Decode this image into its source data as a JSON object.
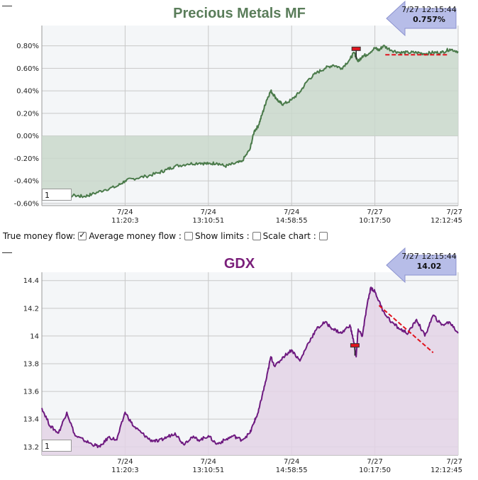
{
  "controls": {
    "true_money_flow_label": "True money flow:",
    "true_money_flow_checked": true,
    "average_money_flow_label": "Average money flow :",
    "average_money_flow_checked": false,
    "show_limits_label": "Show limits :",
    "show_limits_checked": false,
    "scale_chart_label": "Scale chart :",
    "scale_chart_checked": false
  },
  "chart_data": [
    {
      "type": "area",
      "title": "Precious Metals MF",
      "title_color": "#5a7d5a",
      "line_color": "#4a7a4a",
      "fill_color": "#c9d8cb",
      "ylim": [
        -0.62,
        0.98
      ],
      "y_ticks": [
        -0.6,
        -0.4,
        -0.2,
        0.0,
        0.2,
        0.4,
        0.6,
        0.8
      ],
      "y_tick_labels": [
        "-0.60%",
        "-0.40%",
        "-0.20%",
        "0.00%",
        "0.20%",
        "0.40%",
        "0.60%",
        "0.80%"
      ],
      "x_ticks": [
        {
          "x": 0.2,
          "date": "7/24",
          "time": "11:20:3"
        },
        {
          "x": 0.4,
          "date": "7/24",
          "time": "13:10:51"
        },
        {
          "x": 0.6,
          "date": "7/24",
          "time": "14:58:55"
        },
        {
          "x": 0.8,
          "date": "7/27",
          "time": "10:17:50"
        },
        {
          "x": 1.0,
          "date": "7/27",
          "time": "12:12:45"
        }
      ],
      "series": [
        {
          "x": [
            0,
            0.03,
            0.05,
            0.08,
            0.1,
            0.12,
            0.15,
            0.18,
            0.2,
            0.22,
            0.25,
            0.28,
            0.3,
            0.32,
            0.35,
            0.38,
            0.4,
            0.42,
            0.44,
            0.46,
            0.48,
            0.5,
            0.51,
            0.52,
            0.53,
            0.54,
            0.55,
            0.56,
            0.57,
            0.58,
            0.6,
            0.62,
            0.64,
            0.66,
            0.68,
            0.7,
            0.72,
            0.74,
            0.75,
            0.76,
            0.77,
            0.78,
            0.8,
            0.81,
            0.82,
            0.84,
            0.86,
            0.88,
            0.9,
            0.92,
            0.94,
            0.96,
            0.98,
            1.0
          ],
          "values": [
            -0.54,
            -0.55,
            -0.54,
            -0.53,
            -0.54,
            -0.52,
            -0.48,
            -0.45,
            -0.4,
            -0.38,
            -0.36,
            -0.33,
            -0.3,
            -0.27,
            -0.25,
            -0.24,
            -0.25,
            -0.24,
            -0.27,
            -0.25,
            -0.23,
            -0.12,
            0.04,
            0.09,
            0.2,
            0.32,
            0.4,
            0.35,
            0.3,
            0.28,
            0.32,
            0.39,
            0.5,
            0.56,
            0.6,
            0.63,
            0.6,
            0.68,
            0.74,
            0.66,
            0.71,
            0.72,
            0.78,
            0.76,
            0.8,
            0.76,
            0.74,
            0.74,
            0.74,
            0.73,
            0.74,
            0.74,
            0.77,
            0.75
          ]
        }
      ],
      "marker": {
        "x": 0.755,
        "value": 0.77
      },
      "trend_line": {
        "x": [
          0.825,
          0.975
        ],
        "values": [
          0.72,
          0.72
        ]
      },
      "readout": {
        "time": "7/27 12:15:44",
        "value": "0.757%"
      },
      "input_value": "1"
    },
    {
      "type": "area",
      "title": "GDX",
      "title_color": "#7a1f7a",
      "line_color": "#6e1a80",
      "fill_color": "#e3d3e6",
      "ylim": [
        13.14,
        14.46
      ],
      "y_ticks": [
        13.2,
        13.4,
        13.6,
        13.8,
        14.0,
        14.2,
        14.4
      ],
      "y_tick_labels": [
        "13.2",
        "13.4",
        "13.6",
        "13.8",
        "14",
        "14.2",
        "14.4"
      ],
      "x_ticks": [
        {
          "x": 0.2,
          "date": "7/24",
          "time": "11:20:3"
        },
        {
          "x": 0.4,
          "date": "7/24",
          "time": "13:10:51"
        },
        {
          "x": 0.6,
          "date": "7/24",
          "time": "14:58:55"
        },
        {
          "x": 0.8,
          "date": "7/27",
          "time": "10:17:50"
        },
        {
          "x": 1.0,
          "date": "7/27",
          "time": "12:12:45"
        }
      ],
      "series": [
        {
          "x": [
            0,
            0.02,
            0.04,
            0.06,
            0.08,
            0.1,
            0.12,
            0.14,
            0.16,
            0.18,
            0.2,
            0.22,
            0.24,
            0.26,
            0.28,
            0.3,
            0.32,
            0.34,
            0.36,
            0.38,
            0.4,
            0.42,
            0.44,
            0.46,
            0.48,
            0.5,
            0.51,
            0.52,
            0.53,
            0.54,
            0.55,
            0.56,
            0.58,
            0.6,
            0.62,
            0.64,
            0.66,
            0.68,
            0.7,
            0.72,
            0.74,
            0.75,
            0.755,
            0.76,
            0.77,
            0.78,
            0.79,
            0.8,
            0.82,
            0.84,
            0.86,
            0.88,
            0.9,
            0.92,
            0.94,
            0.96,
            0.98,
            1.0
          ],
          "values": [
            13.48,
            13.35,
            13.3,
            13.45,
            13.28,
            13.25,
            13.22,
            13.2,
            13.27,
            13.25,
            13.45,
            13.35,
            13.3,
            13.25,
            13.24,
            13.27,
            13.3,
            13.22,
            13.27,
            13.25,
            13.28,
            13.22,
            13.25,
            13.28,
            13.25,
            13.3,
            13.38,
            13.45,
            13.58,
            13.7,
            13.85,
            13.78,
            13.85,
            13.9,
            13.82,
            13.95,
            14.05,
            14.1,
            14.05,
            14.02,
            14.08,
            13.95,
            13.85,
            14.05,
            14.0,
            14.2,
            14.35,
            14.32,
            14.18,
            14.1,
            14.05,
            14.02,
            14.12,
            14.0,
            14.15,
            14.08,
            14.1,
            14.02
          ]
        }
      ],
      "marker": {
        "x": 0.752,
        "value": 13.93
      },
      "trend_line": {
        "x": [
          0.81,
          0.94
        ],
        "values": [
          14.22,
          13.88
        ]
      },
      "readout": {
        "time": "7/27 12:15:44",
        "value": "14.02"
      },
      "input_value": "1"
    }
  ]
}
